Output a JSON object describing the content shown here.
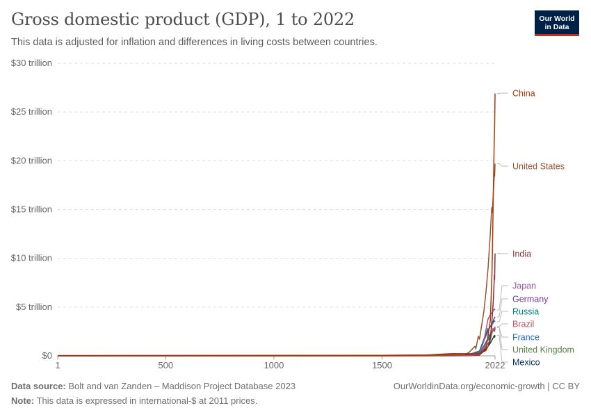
{
  "header": {
    "title": "Gross domestic product (GDP), 1 to 2022",
    "subtitle": "This data is adjusted for inflation and differences in living costs between countries."
  },
  "logo": {
    "line1": "Our World",
    "line2": "in Data"
  },
  "footer": {
    "source_label": "Data source:",
    "source_text": "Bolt and van Zanden – Maddison Project Database 2023",
    "note_label": "Note:",
    "note_text": "This data is expressed in international-$ at 2011 prices.",
    "credit": "OurWorldinData.org/economic-growth | CC BY"
  },
  "chart_data": {
    "type": "line",
    "title": "Gross domestic product (GDP), 1 to 2022",
    "xlabel": "",
    "ylabel": "",
    "xlim": [
      1,
      2022
    ],
    "ylim": [
      0,
      30
    ],
    "y_unit": "trillion international-$ (2011 prices)",
    "x_ticks": [
      {
        "value": 1,
        "label": "1"
      },
      {
        "value": 500,
        "label": "500"
      },
      {
        "value": 1000,
        "label": "1000"
      },
      {
        "value": 1500,
        "label": "1500"
      },
      {
        "value": 2022,
        "label": "2022"
      }
    ],
    "y_ticks": [
      {
        "value": 0,
        "label": "$0"
      },
      {
        "value": 5,
        "label": "$5 trillion"
      },
      {
        "value": 10,
        "label": "$10 trillion"
      },
      {
        "value": 15,
        "label": "$15 trillion"
      },
      {
        "value": 20,
        "label": "$20 trillion"
      },
      {
        "value": 25,
        "label": "$25 trillion"
      },
      {
        "value": 30,
        "label": "$30 trillion"
      }
    ],
    "grid": true,
    "series": [
      {
        "name": "China",
        "color": "#b13507",
        "points": [
          [
            1,
            0.03
          ],
          [
            1000,
            0.04
          ],
          [
            1500,
            0.06
          ],
          [
            1700,
            0.08
          ],
          [
            1820,
            0.23
          ],
          [
            1900,
            0.22
          ],
          [
            1950,
            0.24
          ],
          [
            1980,
            0.8
          ],
          [
            2000,
            3.6
          ],
          [
            2008,
            8.5
          ],
          [
            2010,
            11.0
          ],
          [
            2014,
            16.5
          ],
          [
            2018,
            22.0
          ],
          [
            2020,
            23.5
          ],
          [
            2022,
            26.9
          ]
        ]
      },
      {
        "name": "United States",
        "color": "#9a5129",
        "points": [
          [
            1,
            0.001
          ],
          [
            1700,
            0.003
          ],
          [
            1820,
            0.02
          ],
          [
            1870,
            0.1
          ],
          [
            1900,
            0.31
          ],
          [
            1929,
            0.98
          ],
          [
            1933,
            0.72
          ],
          [
            1945,
            2.0
          ],
          [
            1950,
            1.7
          ],
          [
            1970,
            4.5
          ],
          [
            1980,
            6.5
          ],
          [
            1990,
            9.0
          ],
          [
            2000,
            12.6
          ],
          [
            2007,
            15.2
          ],
          [
            2009,
            14.7
          ],
          [
            2015,
            17.0
          ],
          [
            2019,
            19.0
          ],
          [
            2020,
            18.4
          ],
          [
            2022,
            19.7
          ]
        ]
      },
      {
        "name": "India",
        "color": "#883039",
        "points": [
          [
            1,
            0.03
          ],
          [
            1000,
            0.035
          ],
          [
            1500,
            0.05
          ],
          [
            1700,
            0.08
          ],
          [
            1820,
            0.11
          ],
          [
            1900,
            0.13
          ],
          [
            1950,
            0.2
          ],
          [
            1980,
            0.55
          ],
          [
            1990,
            1.0
          ],
          [
            2000,
            1.8
          ],
          [
            2010,
            4.3
          ],
          [
            2015,
            6.0
          ],
          [
            2019,
            8.3
          ],
          [
            2020,
            7.8
          ],
          [
            2022,
            10.5
          ]
        ]
      },
      {
        "name": "Japan",
        "color": "#a2559c",
        "points": [
          [
            1,
            0.001
          ],
          [
            1000,
            0.005
          ],
          [
            1500,
            0.01
          ],
          [
            1700,
            0.02
          ],
          [
            1820,
            0.025
          ],
          [
            1900,
            0.05
          ],
          [
            1945,
            0.15
          ],
          [
            1950,
            0.2
          ],
          [
            1970,
            1.5
          ],
          [
            1990,
            3.8
          ],
          [
            2000,
            4.2
          ],
          [
            2010,
            4.5
          ],
          [
            2019,
            4.8
          ],
          [
            2022,
            4.7
          ]
        ]
      },
      {
        "name": "Germany",
        "color": "#6d3e91",
        "points": [
          [
            1,
            0.001
          ],
          [
            1000,
            0.005
          ],
          [
            1500,
            0.01
          ],
          [
            1820,
            0.03
          ],
          [
            1900,
            0.15
          ],
          [
            1945,
            0.3
          ],
          [
            1950,
            0.35
          ],
          [
            1970,
            1.5
          ],
          [
            1990,
            2.6
          ],
          [
            2000,
            3.0
          ],
          [
            2010,
            3.4
          ],
          [
            2019,
            3.9
          ],
          [
            2022,
            4.0
          ]
        ]
      },
      {
        "name": "Russia",
        "color": "#00847e",
        "points": [
          [
            1,
            0.001
          ],
          [
            1000,
            0.004
          ],
          [
            1500,
            0.01
          ],
          [
            1820,
            0.04
          ],
          [
            1900,
            0.12
          ],
          [
            1950,
            0.5
          ],
          [
            1989,
            2.8
          ],
          [
            1998,
            1.4
          ],
          [
            2008,
            3.2
          ],
          [
            2019,
            3.6
          ],
          [
            2022,
            3.5
          ]
        ]
      },
      {
        "name": "Brazil",
        "color": "#c15065",
        "points": [
          [
            1,
            0.001
          ],
          [
            1820,
            0.005
          ],
          [
            1900,
            0.02
          ],
          [
            1950,
            0.12
          ],
          [
            1980,
            1.0
          ],
          [
            2000,
            1.6
          ],
          [
            2013,
            2.8
          ],
          [
            2016,
            2.6
          ],
          [
            2019,
            2.8
          ],
          [
            2022,
            3.0
          ]
        ]
      },
      {
        "name": "France",
        "color": "#286bbb",
        "points": [
          [
            1,
            0.005
          ],
          [
            1000,
            0.01
          ],
          [
            1500,
            0.02
          ],
          [
            1820,
            0.04
          ],
          [
            1900,
            0.12
          ],
          [
            1950,
            0.2
          ],
          [
            1970,
            1.0
          ],
          [
            1990,
            1.8
          ],
          [
            2000,
            2.2
          ],
          [
            2019,
            2.8
          ],
          [
            2020,
            2.6
          ],
          [
            2022,
            2.9
          ]
        ]
      },
      {
        "name": "United Kingdom",
        "color": "#578145",
        "points": [
          [
            1,
            0.002
          ],
          [
            1000,
            0.005
          ],
          [
            1500,
            0.01
          ],
          [
            1820,
            0.04
          ],
          [
            1900,
            0.18
          ],
          [
            1950,
            0.35
          ],
          [
            1970,
            0.9
          ],
          [
            1990,
            1.6
          ],
          [
            2000,
            2.1
          ],
          [
            2019,
            2.8
          ],
          [
            2020,
            2.5
          ],
          [
            2022,
            2.9
          ]
        ]
      },
      {
        "name": "Mexico",
        "color": "#18470f",
        "points": [
          [
            1,
            0.001
          ],
          [
            1820,
            0.004
          ],
          [
            1900,
            0.01
          ],
          [
            1950,
            0.08
          ],
          [
            1980,
            0.7
          ],
          [
            2000,
            1.3
          ],
          [
            2019,
            2.1
          ],
          [
            2020,
            1.9
          ],
          [
            2022,
            2.1
          ]
        ]
      }
    ],
    "line_labels": [
      {
        "name": "China",
        "color": "#b13507"
      },
      {
        "name": "United States",
        "color": "#9a5129"
      },
      {
        "name": "India",
        "color": "#883039"
      },
      {
        "name": "Japan",
        "color": "#a2559c"
      },
      {
        "name": "Germany",
        "color": "#6d3e91"
      },
      {
        "name": "Russia",
        "color": "#00847e"
      },
      {
        "name": "Brazil",
        "color": "#c15065"
      },
      {
        "name": "France",
        "color": "#286bbb"
      },
      {
        "name": "United Kingdom",
        "color": "#578145"
      },
      {
        "name": "Mexico",
        "color": "#00295b"
      }
    ]
  }
}
